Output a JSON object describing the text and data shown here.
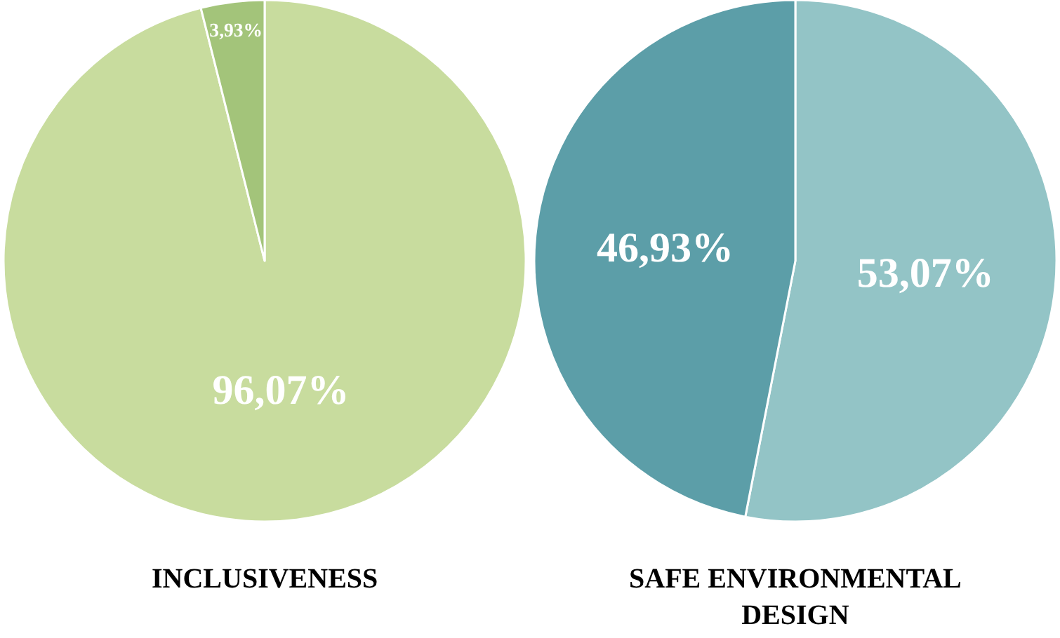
{
  "chart_data": [
    {
      "type": "pie",
      "title": "INCLUSIVENESS",
      "categories": [
        null,
        null
      ],
      "values": [
        96.07,
        3.93
      ],
      "colors": [
        "#c8dc9e",
        "#a3c47a"
      ],
      "value_labels": [
        "96,07%",
        "3,93%"
      ]
    },
    {
      "type": "pie",
      "title": "SAFE ENVIRONMENTAL DESIGN",
      "categories": [
        null,
        null
      ],
      "values": [
        53.07,
        46.93
      ],
      "colors": [
        "#93c4c6",
        "#5c9ea8"
      ],
      "value_labels": [
        "53,07%",
        "46,93%"
      ]
    }
  ]
}
